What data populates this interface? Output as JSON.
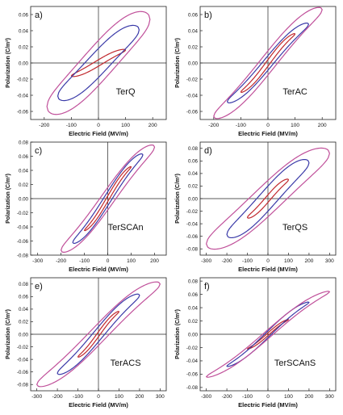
{
  "figure": {
    "axis_labels": {
      "x": "Electric Field (MV/m)",
      "y": "Polarization (C/m²)"
    }
  },
  "chart_data": [
    {
      "type": "line",
      "panel_letter": "a)",
      "sample": "TerQ",
      "xlabel": "Electric Field (MV/m)",
      "ylabel": "Polarization (C/m²)",
      "xlim": [
        -250,
        250
      ],
      "ylim": [
        -0.07,
        0.07
      ],
      "x_ticks": [
        -200,
        -100,
        0,
        100,
        200
      ],
      "y_ticks": [
        -0.06,
        -0.04,
        -0.02,
        0.0,
        0.02,
        0.04,
        0.06
      ],
      "y_tick_labels": [
        "-0.06",
        "-0.04",
        "-0.02",
        "0.00",
        "0.02",
        "0.04",
        "0.06"
      ],
      "grid": false,
      "loops": [
        {
          "color": "#c0282d",
          "x_max": 100,
          "p_max": 0.016,
          "p_r": 0.004
        },
        {
          "color": "#3a3aa8",
          "x_max": 150,
          "p_max": 0.041,
          "p_r": 0.018
        },
        {
          "color": "#c0509a",
          "x_max": 190,
          "p_max": 0.054,
          "p_r": 0.028
        }
      ]
    },
    {
      "type": "line",
      "panel_letter": "b)",
      "sample": "TerAC",
      "xlabel": "Electric Field (MV/m)",
      "ylabel": "Polarization (C/m²)",
      "xlim": [
        -250,
        250
      ],
      "ylim": [
        -0.07,
        0.07
      ],
      "x_ticks": [
        -200,
        -100,
        0,
        100,
        200
      ],
      "y_ticks": [
        -0.06,
        -0.04,
        -0.02,
        0.0,
        0.02,
        0.04,
        0.06
      ],
      "y_tick_labels": [
        "-0.06",
        "-0.04",
        "-0.02",
        "0.00",
        "0.02",
        "0.04",
        "0.06"
      ],
      "grid": false,
      "loops": [
        {
          "color": "#c0282d",
          "x_max": 100,
          "p_max": 0.036,
          "p_r": 0.004
        },
        {
          "color": "#3a3aa8",
          "x_max": 150,
          "p_max": 0.048,
          "p_r": 0.009
        },
        {
          "color": "#c0509a",
          "x_max": 200,
          "p_max": 0.066,
          "p_r": 0.015
        }
      ]
    },
    {
      "type": "line",
      "panel_letter": "c)",
      "sample": "TerSCAn",
      "xlabel": "Electric Field (MV/m)",
      "ylabel": "Polarization (C/m²)",
      "xlim": [
        -330,
        250
      ],
      "ylim": [
        -0.08,
        0.08
      ],
      "x_ticks": [
        -300,
        -200,
        -100,
        0,
        100,
        200
      ],
      "y_ticks": [
        -0.08,
        -0.06,
        -0.04,
        -0.02,
        0.0,
        0.02,
        0.04,
        0.06,
        0.08
      ],
      "y_tick_labels": [
        "-0.08",
        "-0.06",
        "-0.04",
        "-0.02",
        "0.00",
        "0.02",
        "0.04",
        "0.06",
        "0.08"
      ],
      "grid": false,
      "loops": [
        {
          "color": "#c0282d",
          "x_max": 100,
          "p_max": 0.045,
          "p_r": 0.004
        },
        {
          "color": "#3a3aa8",
          "x_max": 150,
          "p_max": 0.062,
          "p_r": 0.01
        },
        {
          "color": "#c0509a",
          "x_max": 200,
          "p_max": 0.073,
          "p_r": 0.016
        }
      ]
    },
    {
      "type": "line",
      "panel_letter": "d)",
      "sample": "TerQS",
      "xlabel": "Electric Field (MV/m)",
      "ylabel": "Polarization (C/m²)",
      "xlim": [
        -330,
        330
      ],
      "ylim": [
        -0.09,
        0.09
      ],
      "x_ticks": [
        -300,
        -200,
        -100,
        0,
        100,
        200,
        300
      ],
      "y_ticks": [
        -0.08,
        -0.06,
        -0.04,
        -0.02,
        0.0,
        0.02,
        0.04,
        0.06,
        0.08
      ],
      "y_tick_labels": [
        "-0.08",
        "-0.06",
        "-0.04",
        "-0.02",
        "0.00",
        "0.02",
        "0.04",
        "0.06",
        "0.08"
      ],
      "grid": false,
      "loops": [
        {
          "color": "#c0282d",
          "x_max": 100,
          "p_max": 0.03,
          "p_r": 0.006
        },
        {
          "color": "#3a3aa8",
          "x_max": 200,
          "p_max": 0.057,
          "p_r": 0.02
        },
        {
          "color": "#c0509a",
          "x_max": 300,
          "p_max": 0.072,
          "p_r": 0.029
        }
      ]
    },
    {
      "type": "line",
      "panel_letter": "e)",
      "sample": "TerACS",
      "xlabel": "Electric Field (MV/m)",
      "ylabel": "Polarization (C/m²)",
      "xlim": [
        -330,
        330
      ],
      "ylim": [
        -0.09,
        0.09
      ],
      "x_ticks": [
        -300,
        -200,
        -100,
        0,
        100,
        200,
        300
      ],
      "y_ticks": [
        -0.08,
        -0.06,
        -0.04,
        -0.02,
        0.0,
        0.02,
        0.04,
        0.06,
        0.08
      ],
      "y_tick_labels": [
        "-0.08",
        "-0.06",
        "-0.04",
        "-0.02",
        "0.00",
        "0.02",
        "0.04",
        "0.06",
        "0.08"
      ],
      "grid": false,
      "loops": [
        {
          "color": "#c0282d",
          "x_max": 100,
          "p_max": 0.036,
          "p_r": 0.004
        },
        {
          "color": "#3a3aa8",
          "x_max": 200,
          "p_max": 0.062,
          "p_r": 0.012
        },
        {
          "color": "#c0509a",
          "x_max": 300,
          "p_max": 0.08,
          "p_r": 0.018
        }
      ]
    },
    {
      "type": "line",
      "panel_letter": "f)",
      "sample": "TerSCAnS",
      "xlabel": "Electric Field (MV/m)",
      "ylabel": "Polarization (C/m²)",
      "xlim": [
        -330,
        330
      ],
      "ylim": [
        -0.085,
        0.085
      ],
      "x_ticks": [
        -300,
        -200,
        -100,
        0,
        100,
        200,
        300
      ],
      "y_ticks": [
        -0.08,
        -0.06,
        -0.04,
        -0.02,
        0.0,
        0.02,
        0.04,
        0.06,
        0.08
      ],
      "y_tick_labels": [
        "-0.08",
        "-0.06",
        "-0.04",
        "-0.02",
        "0.00",
        "0.02",
        "0.04",
        "0.06",
        "0.08"
      ],
      "grid": false,
      "loops": [
        {
          "color": "#c0282d",
          "x_max": 100,
          "p_max": 0.022,
          "p_r": 0.002
        },
        {
          "color": "#3a3aa8",
          "x_max": 200,
          "p_max": 0.048,
          "p_r": 0.005
        },
        {
          "color": "#c0509a",
          "x_max": 300,
          "p_max": 0.064,
          "p_r": 0.007
        }
      ]
    }
  ]
}
